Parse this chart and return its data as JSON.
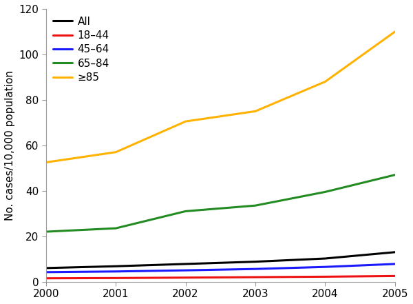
{
  "years": [
    2000,
    2001,
    2002,
    2003,
    2004,
    2005
  ],
  "series": {
    "All": {
      "color": "#000000",
      "linewidth": 2.2,
      "values": [
        6.0,
        6.8,
        7.8,
        8.8,
        10.2,
        13.0
      ]
    },
    "18–44": {
      "color": "#ee1111",
      "linewidth": 2.2,
      "values": [
        1.5,
        1.6,
        1.8,
        2.0,
        2.2,
        2.5
      ]
    },
    "45–64": {
      "color": "#1a1aff",
      "linewidth": 2.2,
      "values": [
        4.2,
        4.5,
        5.0,
        5.6,
        6.5,
        7.8
      ]
    },
    "65–84": {
      "color": "#228B22",
      "linewidth": 2.2,
      "values": [
        22.0,
        23.5,
        31.0,
        33.5,
        39.5,
        47.0
      ]
    },
    "≥85": {
      "color": "#FFB300",
      "linewidth": 2.2,
      "values": [
        52.5,
        57.0,
        70.5,
        75.0,
        88.0,
        110.0
      ]
    }
  },
  "ylabel": "No. cases/10,000 population",
  "xlim": [
    2000,
    2005
  ],
  "ylim": [
    0,
    120
  ],
  "yticks": [
    0,
    20,
    40,
    60,
    80,
    100,
    120
  ],
  "xticks": [
    2000,
    2001,
    2002,
    2003,
    2004,
    2005
  ],
  "legend_order": [
    "All",
    "18–44",
    "45–64",
    "65–84",
    "≥85"
  ],
  "background_color": "#ffffff",
  "spine_color": "#999999",
  "tick_fontsize": 11,
  "ylabel_fontsize": 11,
  "legend_fontsize": 11
}
